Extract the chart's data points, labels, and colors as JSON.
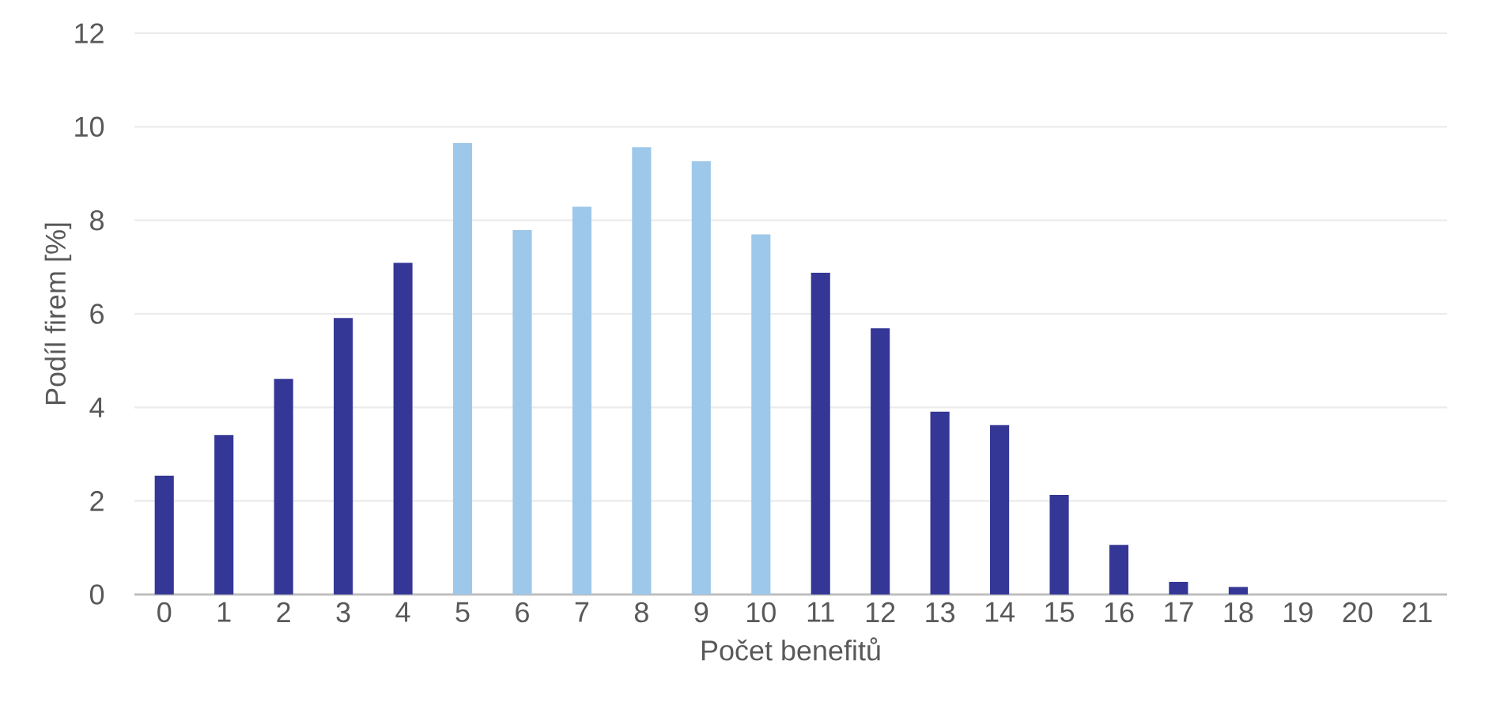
{
  "chart_data": {
    "type": "bar",
    "xlabel": "Počet benefitů",
    "ylabel": "Podíl firem [%]",
    "categories": [
      "0",
      "1",
      "2",
      "3",
      "4",
      "5",
      "6",
      "7",
      "8",
      "9",
      "10",
      "11",
      "12",
      "13",
      "14",
      "15",
      "16",
      "17",
      "18",
      "19",
      "20",
      "21"
    ],
    "values": [
      2.54,
      3.41,
      4.61,
      5.91,
      7.09,
      9.65,
      7.79,
      8.29,
      9.56,
      9.26,
      7.7,
      6.88,
      5.69,
      3.91,
      3.62,
      2.13,
      1.06,
      0.27,
      0.16,
      0,
      0,
      0
    ],
    "colors": [
      "#343795",
      "#343795",
      "#343795",
      "#343795",
      "#343795",
      "#9dc8ea",
      "#9dc8ea",
      "#9dc8ea",
      "#9dc8ea",
      "#9dc8ea",
      "#9dc8ea",
      "#343795",
      "#343795",
      "#343795",
      "#343795",
      "#343795",
      "#343795",
      "#343795",
      "#343795",
      "#343795",
      "#343795",
      "#343795"
    ],
    "ylim": [
      0,
      12
    ],
    "yticks": [
      0,
      2,
      4,
      6,
      8,
      10,
      12
    ],
    "grid": "y"
  }
}
